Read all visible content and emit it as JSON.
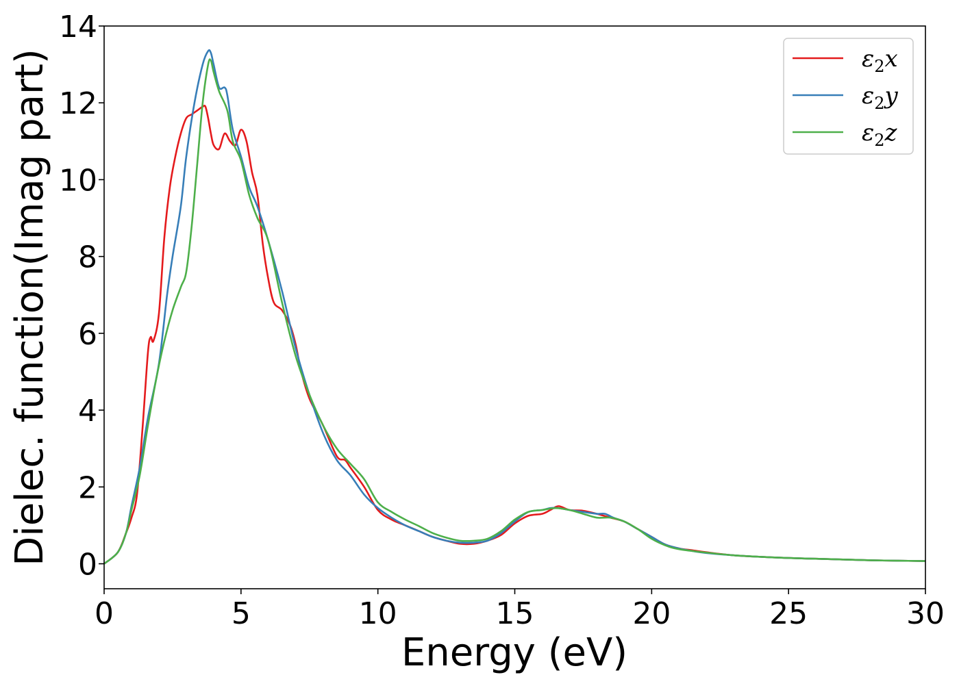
{
  "chart_data": {
    "type": "line",
    "title": "",
    "xlabel": "Energy (eV)",
    "ylabel": "Dielec. function(Imag part)",
    "xlim": [
      0,
      30
    ],
    "ylim": [
      -0.65,
      14
    ],
    "xticks": [
      0,
      5,
      10,
      15,
      20,
      25,
      30
    ],
    "yticks": [
      0,
      2,
      4,
      6,
      8,
      10,
      12,
      14
    ],
    "grid": false,
    "legend_position": "top-right",
    "series": [
      {
        "name": "ε2x",
        "legend_base": "ε",
        "legend_sub": "2",
        "legend_axis": "x",
        "color": "#e41a1c",
        "x": [
          0,
          0.5,
          0.8,
          1.0,
          1.2,
          1.4,
          1.6,
          1.7,
          1.8,
          2.0,
          2.2,
          2.4,
          2.6,
          2.8,
          3.0,
          3.2,
          3.4,
          3.6,
          3.7,
          3.8,
          3.9,
          4.0,
          4.2,
          4.4,
          4.6,
          4.8,
          5.0,
          5.2,
          5.4,
          5.6,
          5.8,
          6.0,
          6.2,
          6.5,
          6.8,
          7.0,
          7.2,
          7.5,
          8.0,
          8.5,
          8.8,
          9.0,
          9.5,
          10.0,
          10.5,
          11.0,
          11.5,
          12.0,
          12.5,
          13.0,
          13.5,
          14.0,
          14.5,
          15.0,
          15.5,
          16.0,
          16.3,
          16.6,
          17.0,
          17.5,
          18.0,
          18.5,
          19.0,
          19.5,
          20.0,
          20.5,
          21.0,
          21.5,
          22.0,
          23.0,
          24.0,
          25.0,
          26.0,
          27.0,
          28.0,
          29.0,
          30.0
        ],
        "y": [
          0,
          0.3,
          0.8,
          1.2,
          1.8,
          3.5,
          5.5,
          5.9,
          5.8,
          6.5,
          8.5,
          9.8,
          10.6,
          11.2,
          11.6,
          11.7,
          11.8,
          11.9,
          11.9,
          11.6,
          11.2,
          10.9,
          10.8,
          11.2,
          11.0,
          10.9,
          11.3,
          11.0,
          10.2,
          9.6,
          8.3,
          7.4,
          6.8,
          6.6,
          6.2,
          5.7,
          5.0,
          4.3,
          3.6,
          2.8,
          2.7,
          2.5,
          2.0,
          1.4,
          1.15,
          1.0,
          0.85,
          0.7,
          0.6,
          0.52,
          0.52,
          0.6,
          0.75,
          1.05,
          1.25,
          1.3,
          1.4,
          1.5,
          1.4,
          1.38,
          1.3,
          1.2,
          1.1,
          0.9,
          0.7,
          0.5,
          0.4,
          0.35,
          0.3,
          0.22,
          0.18,
          0.15,
          0.13,
          0.11,
          0.09,
          0.08,
          0.07
        ]
      },
      {
        "name": "ε2y",
        "legend_base": "ε",
        "legend_sub": "2",
        "legend_axis": "y",
        "color": "#377eb8",
        "x": [
          0,
          0.5,
          0.8,
          1.0,
          1.3,
          1.6,
          2.0,
          2.3,
          2.5,
          2.8,
          3.0,
          3.3,
          3.6,
          3.8,
          3.9,
          4.0,
          4.2,
          4.4,
          4.5,
          4.7,
          5.0,
          5.3,
          5.6,
          6.0,
          6.5,
          7.0,
          7.5,
          8.0,
          8.5,
          9.0,
          9.5,
          10.0,
          10.5,
          11.0,
          11.5,
          12.0,
          12.5,
          13.0,
          13.5,
          14.0,
          14.5,
          15.0,
          15.5,
          16.0,
          16.3,
          16.6,
          17.0,
          17.5,
          18.0,
          18.3,
          18.6,
          19.0,
          19.5,
          20.0,
          20.5,
          21.0,
          21.5,
          22.0,
          23.0,
          24.0,
          25.0,
          26.0,
          27.0,
          28.0,
          29.0,
          30.0
        ],
        "y": [
          0,
          0.3,
          0.8,
          1.5,
          2.5,
          3.8,
          5.2,
          7.0,
          8.0,
          9.3,
          10.6,
          12.0,
          13.0,
          13.35,
          13.3,
          13.0,
          12.4,
          12.4,
          12.2,
          11.3,
          10.6,
          9.8,
          9.3,
          8.4,
          7.1,
          5.6,
          4.4,
          3.4,
          2.7,
          2.3,
          1.8,
          1.45,
          1.2,
          1.0,
          0.85,
          0.7,
          0.6,
          0.55,
          0.55,
          0.6,
          0.8,
          1.1,
          1.35,
          1.4,
          1.45,
          1.45,
          1.4,
          1.35,
          1.3,
          1.3,
          1.2,
          1.1,
          0.9,
          0.7,
          0.5,
          0.4,
          0.33,
          0.28,
          0.22,
          0.18,
          0.15,
          0.13,
          0.11,
          0.09,
          0.08,
          0.07
        ]
      },
      {
        "name": "ε2z",
        "legend_base": "ε",
        "legend_sub": "2",
        "legend_axis": "z",
        "color": "#4daf4a",
        "x": [
          0,
          0.5,
          0.8,
          1.0,
          1.3,
          1.6,
          1.9,
          2.2,
          2.5,
          2.8,
          3.0,
          3.2,
          3.4,
          3.6,
          3.8,
          3.9,
          4.0,
          4.2,
          4.5,
          4.7,
          5.0,
          5.3,
          5.6,
          6.0,
          6.5,
          7.0,
          7.5,
          8.0,
          8.5,
          9.0,
          9.5,
          10.0,
          10.5,
          11.0,
          11.5,
          12.0,
          12.5,
          13.0,
          13.5,
          14.0,
          14.5,
          15.0,
          15.5,
          16.0,
          16.5,
          17.0,
          17.5,
          18.0,
          18.5,
          19.0,
          19.5,
          20.0,
          20.5,
          21.0,
          22.0,
          23.0,
          24.0,
          25.0,
          26.0,
          27.0,
          28.0,
          29.0,
          30.0
        ],
        "y": [
          0,
          0.3,
          0.8,
          1.4,
          2.3,
          3.6,
          4.8,
          5.8,
          6.6,
          7.2,
          7.6,
          8.8,
          10.4,
          12.0,
          13.0,
          13.1,
          12.8,
          12.3,
          11.8,
          11.0,
          10.5,
          9.6,
          9.0,
          8.4,
          6.8,
          5.4,
          4.4,
          3.6,
          3.0,
          2.6,
          2.2,
          1.6,
          1.35,
          1.15,
          0.98,
          0.8,
          0.68,
          0.6,
          0.6,
          0.65,
          0.85,
          1.15,
          1.35,
          1.4,
          1.45,
          1.4,
          1.3,
          1.2,
          1.2,
          1.1,
          0.9,
          0.65,
          0.48,
          0.38,
          0.29,
          0.22,
          0.18,
          0.15,
          0.13,
          0.11,
          0.09,
          0.08,
          0.07
        ]
      }
    ]
  }
}
